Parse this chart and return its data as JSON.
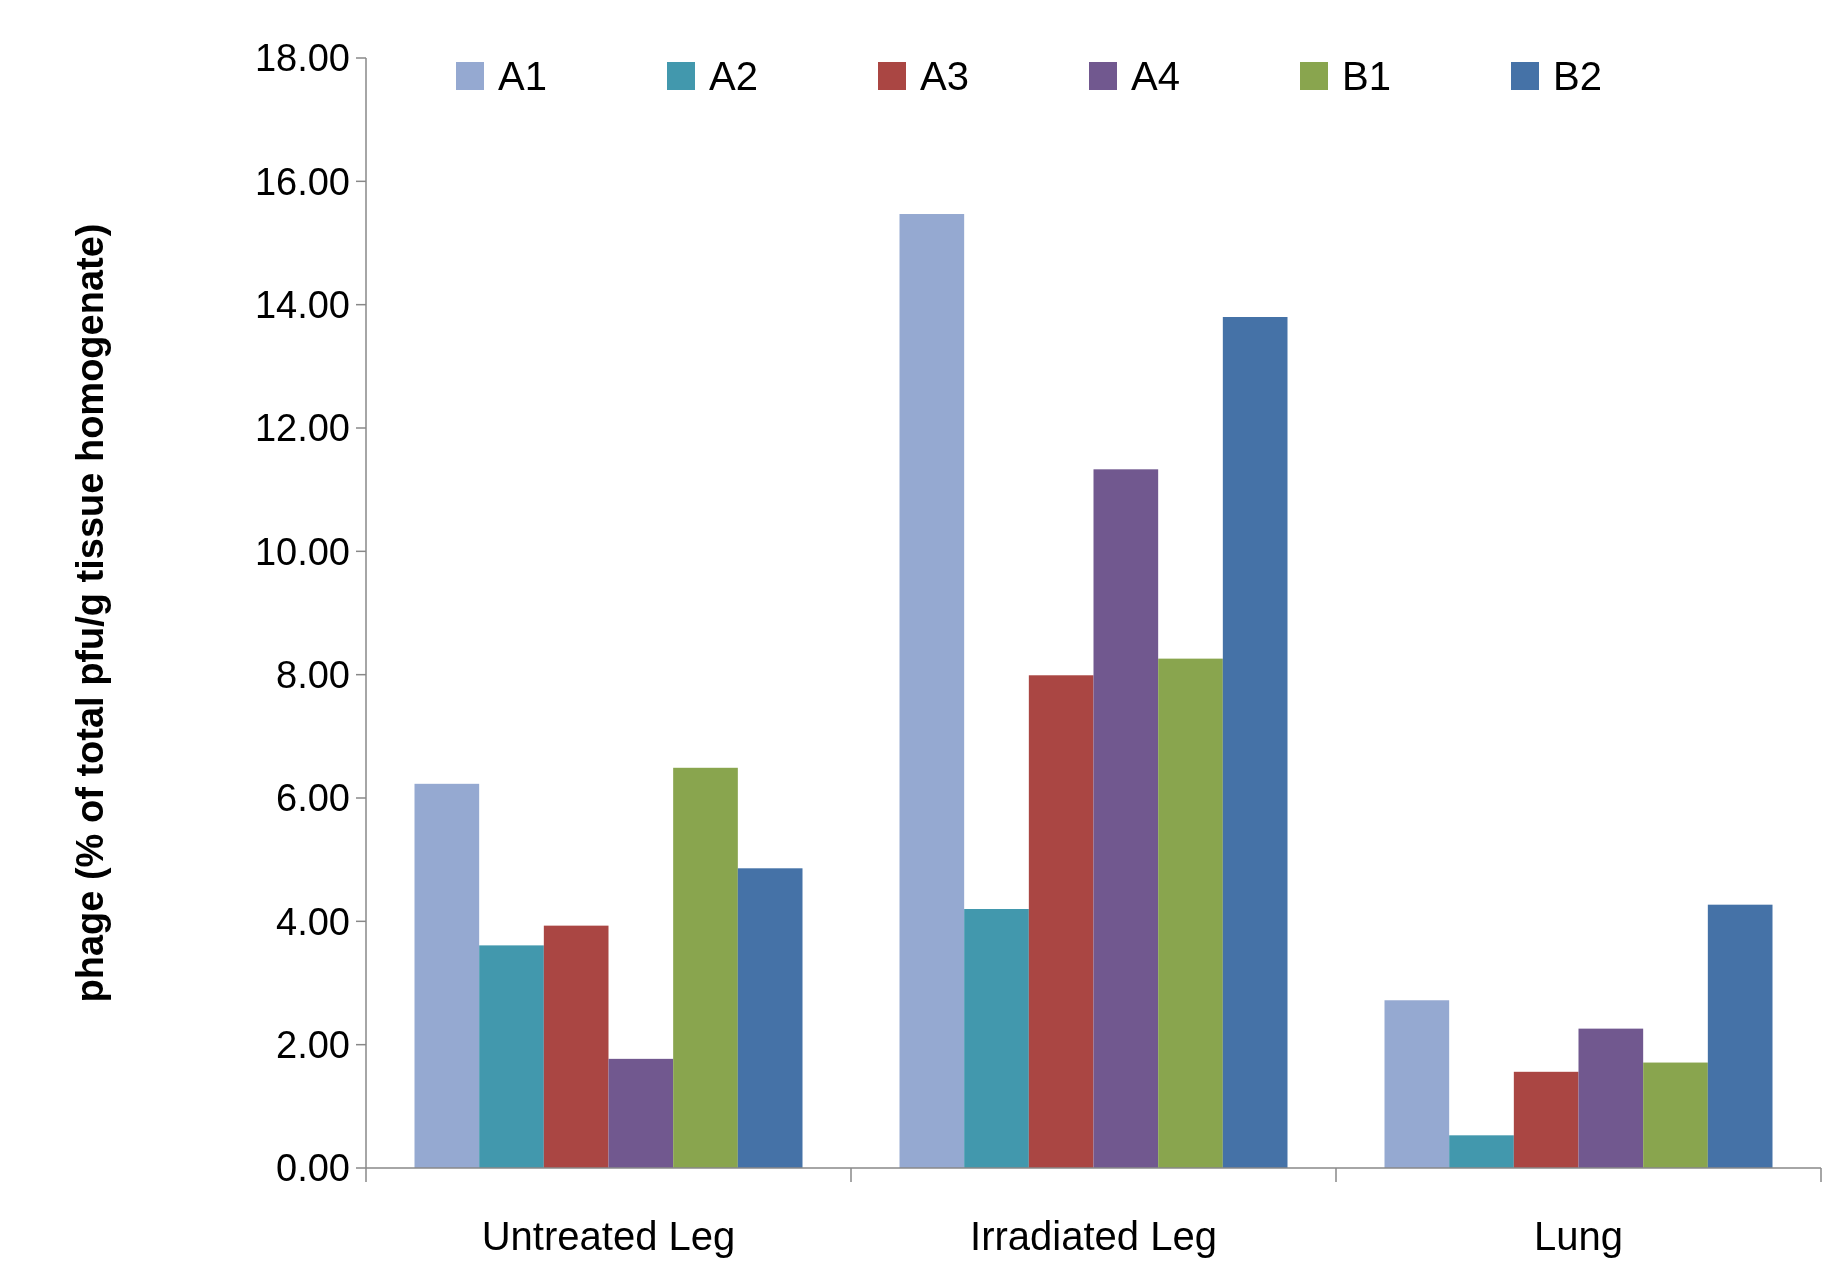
{
  "chart_data": {
    "type": "bar",
    "ylabel": "phage (% of total pfu/g tissue homogenate)",
    "categories": [
      "Untreated Leg",
      "Irradiated Leg",
      "Lung"
    ],
    "series": [
      {
        "name": "A1",
        "color": "#95a9d1",
        "values": [
          6.23,
          15.47,
          2.72
        ]
      },
      {
        "name": "A2",
        "color": "#4298ad",
        "values": [
          3.61,
          4.2,
          0.53
        ]
      },
      {
        "name": "A3",
        "color": "#aa4643",
        "values": [
          3.93,
          7.99,
          1.56
        ]
      },
      {
        "name": "A4",
        "color": "#71588f",
        "values": [
          1.77,
          11.33,
          2.26
        ]
      },
      {
        "name": "B1",
        "color": "#89a54e",
        "values": [
          6.49,
          8.26,
          1.71
        ]
      },
      {
        "name": "B2",
        "color": "#4572a7",
        "values": [
          4.86,
          13.8,
          4.27
        ]
      }
    ],
    "ylim": [
      0,
      18
    ],
    "yticks": [
      {
        "value": 0,
        "label": "0.00"
      },
      {
        "value": 2,
        "label": "2.00"
      },
      {
        "value": 4,
        "label": "4.00"
      },
      {
        "value": 6,
        "label": "6.00"
      },
      {
        "value": 8,
        "label": "8.00"
      },
      {
        "value": 10,
        "label": "10.00"
      },
      {
        "value": 12,
        "label": "12.00"
      },
      {
        "value": 14,
        "label": "14.00"
      },
      {
        "value": 16,
        "label": "16.00"
      },
      {
        "value": 18,
        "label": "18.00"
      }
    ],
    "grid": false,
    "legend": "top"
  }
}
